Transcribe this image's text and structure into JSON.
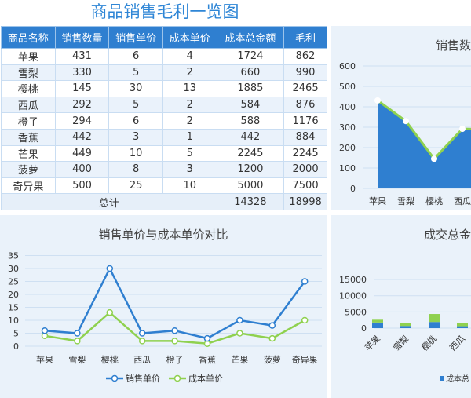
{
  "title": "商品销售毛利一览图",
  "table": {
    "headers": [
      "商品名称",
      "销售数量",
      "销售单价",
      "成本单价",
      "成本总金额",
      "毛利"
    ],
    "rows": [
      [
        "苹果",
        "431",
        "6",
        "4",
        "1724",
        "862"
      ],
      [
        "雪梨",
        "330",
        "5",
        "2",
        "660",
        "990"
      ],
      [
        "樱桃",
        "145",
        "30",
        "13",
        "1885",
        "2465"
      ],
      [
        "西瓜",
        "292",
        "5",
        "2",
        "584",
        "876"
      ],
      [
        "橙子",
        "294",
        "6",
        "2",
        "588",
        "1176"
      ],
      [
        "香蕉",
        "442",
        "3",
        "1",
        "442",
        "884"
      ],
      [
        "芒果",
        "449",
        "10",
        "5",
        "2245",
        "2245"
      ],
      [
        "菠萝",
        "400",
        "8",
        "3",
        "1200",
        "2000"
      ],
      [
        "奇异果",
        "500",
        "25",
        "10",
        "5000",
        "7500"
      ]
    ],
    "total_label": "总计",
    "total_cost": "14328",
    "total_profit": "18998"
  },
  "chart_data": [
    {
      "type": "line",
      "title": "销售单价与成本单价对比",
      "categories": [
        "苹果",
        "雪梨",
        "樱桃",
        "西瓜",
        "橙子",
        "香蕉",
        "芒果",
        "菠萝",
        "奇异果"
      ],
      "series": [
        {
          "name": "销售单价",
          "values": [
            6,
            5,
            30,
            5,
            6,
            3,
            10,
            8,
            25
          ],
          "color": "#2f7fd0"
        },
        {
          "name": "成本单价",
          "values": [
            4,
            2,
            13,
            2,
            2,
            1,
            5,
            3,
            10
          ],
          "color": "#8fd14f"
        }
      ],
      "ylim": [
        0,
        35
      ],
      "yticks": [
        "0",
        "5",
        "10",
        "15",
        "20",
        "25",
        "30",
        "35"
      ],
      "grid": true,
      "legend": "bottom"
    },
    {
      "type": "area",
      "title": "销售数",
      "categories": [
        "苹果",
        "雪梨",
        "樱桃",
        "西瓜"
      ],
      "values": [
        431,
        330,
        145,
        292
      ],
      "ylim": [
        0,
        600
      ],
      "yticks": [
        "0",
        "100",
        "200",
        "300",
        "400",
        "500",
        "600"
      ],
      "colors": {
        "fill": "#2f7fd0",
        "line": "#8fd14f"
      },
      "grid": true
    },
    {
      "type": "bar",
      "title": "成交总金",
      "categories": [
        "苹果",
        "雪梨",
        "樱桃",
        "西瓜"
      ],
      "series": [
        {
          "name": "成本总",
          "values": [
            1724,
            660,
            1885,
            584
          ],
          "color": "#2f7fd0"
        },
        {
          "values": [
            862,
            990,
            2465,
            876
          ],
          "color": "#8fd14f"
        }
      ],
      "stacked": true,
      "ylim": [
        0,
        15000
      ],
      "yticks": [
        "0",
        "5000",
        "10000",
        "15000"
      ],
      "grid": true,
      "legend": "bottom"
    }
  ]
}
